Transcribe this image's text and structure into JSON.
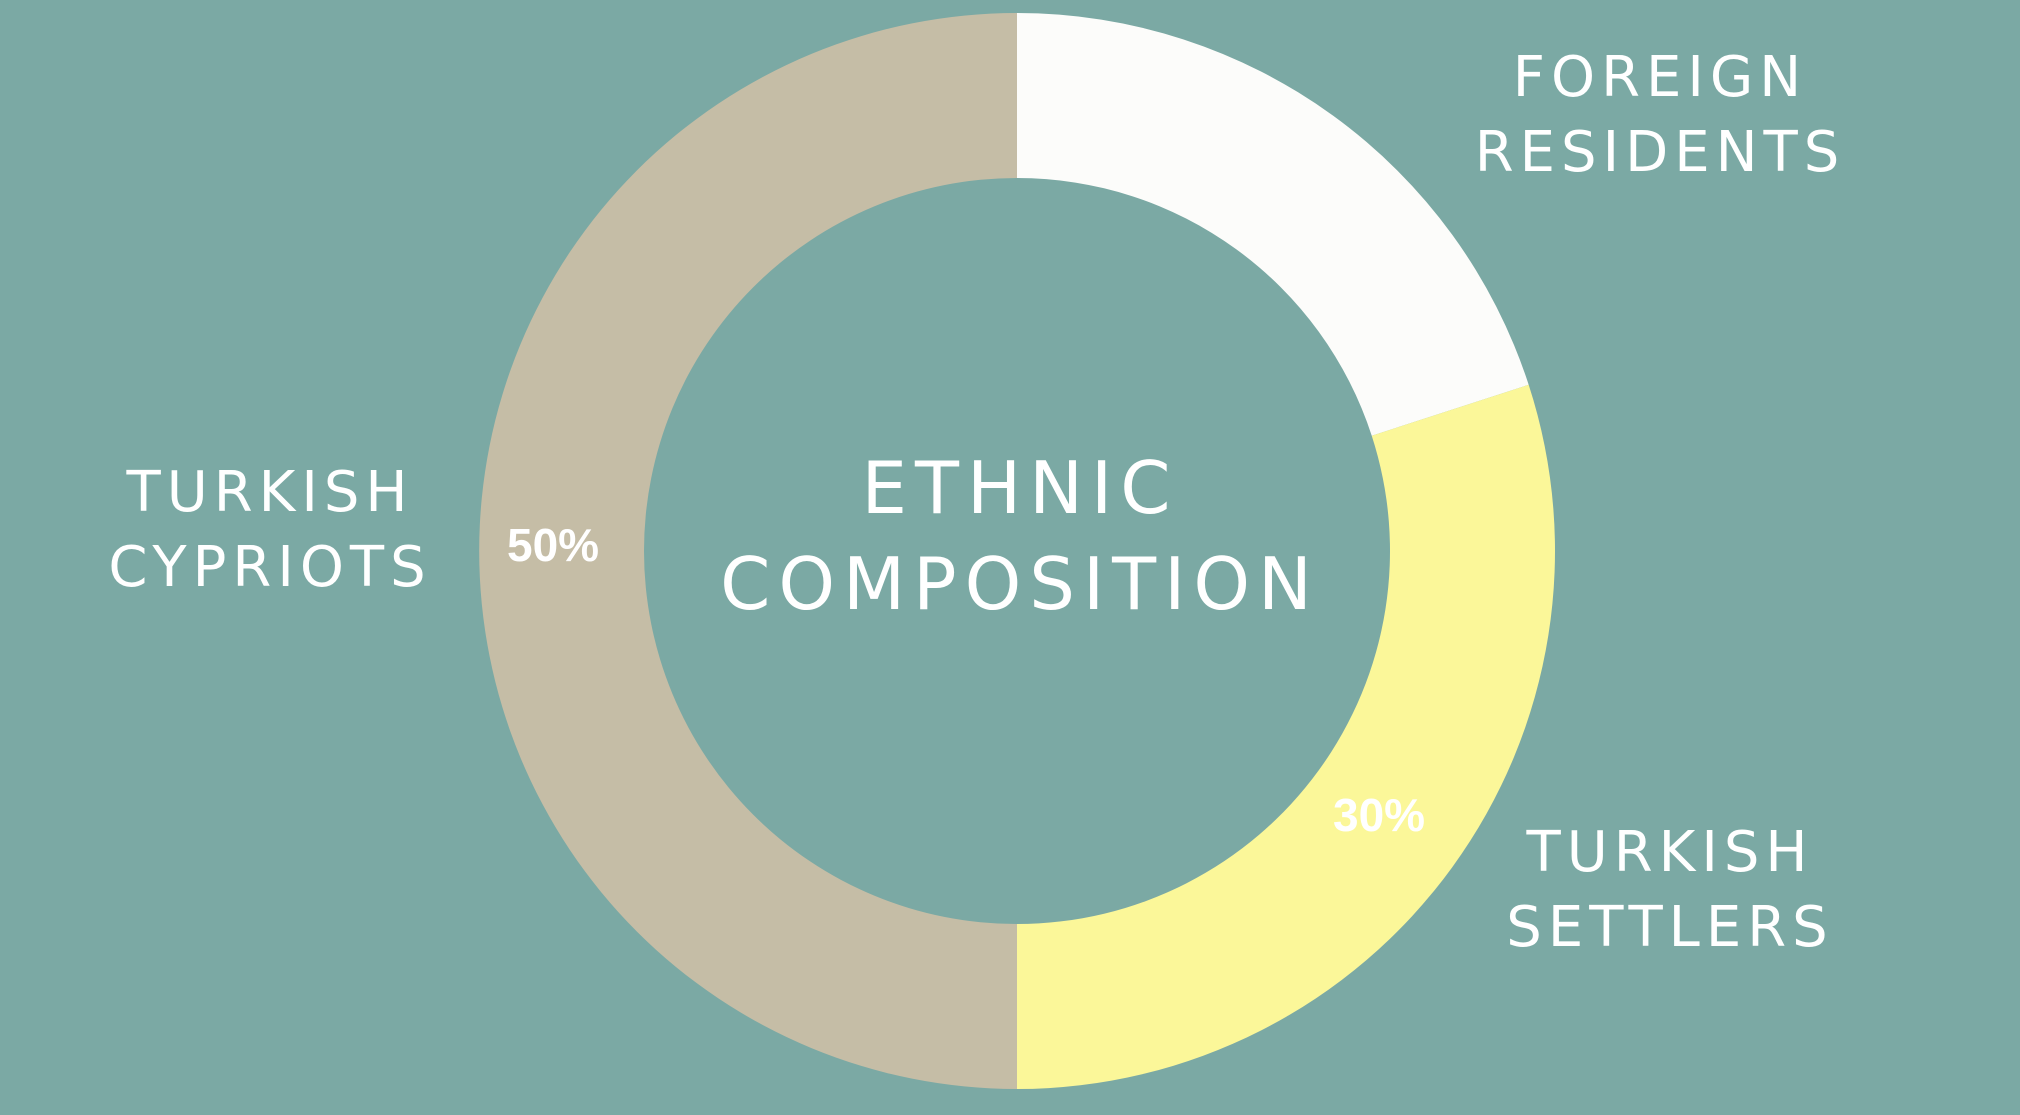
{
  "chart_data": {
    "type": "pie",
    "title": "ETHNIC COMPOSITION",
    "title_lines": [
      "ETHNIC",
      "COMPOSITION"
    ],
    "slices": [
      {
        "name": "FOREIGN RESIDENTS",
        "name_lines": [
          "FOREIGN",
          "RESIDENTS"
        ],
        "value": 20,
        "value_label": "",
        "color": "#fcfcfa"
      },
      {
        "name": "TURKISH SETTLERS",
        "name_lines": [
          "TURKISH",
          "SETTLERS"
        ],
        "value": 30,
        "value_label": "30%",
        "color": "#fbf799"
      },
      {
        "name": "TURKISH CYPRIOTS",
        "name_lines": [
          "TURKISH",
          "CYPRIOTS"
        ],
        "value": 50,
        "value_label": "50%",
        "color": "#c5bda6"
      }
    ],
    "background": "#7ba9a4",
    "legend": "none"
  }
}
